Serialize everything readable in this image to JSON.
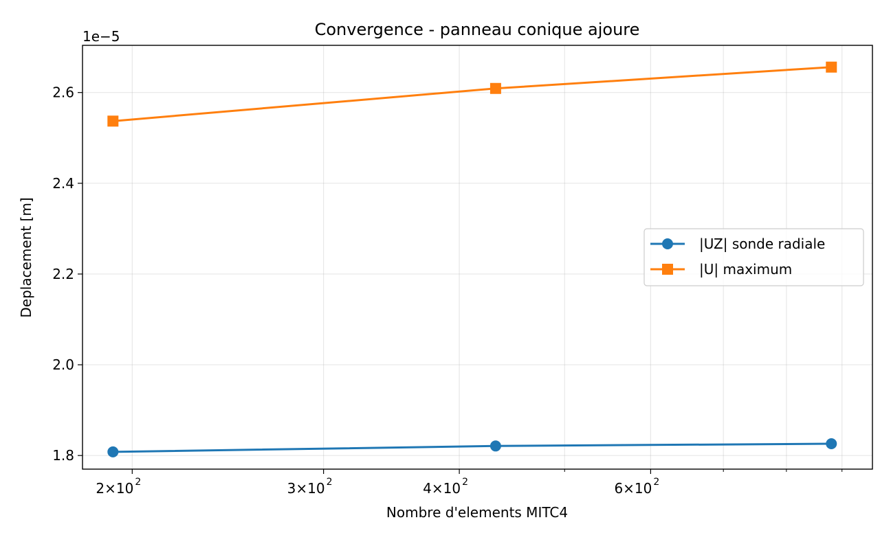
{
  "chart_data": {
    "type": "line",
    "title": "Convergence - panneau conique ajoure",
    "xlabel": "Nombre d'elements MITC4",
    "ylabel": "Deplacement [m]",
    "x_scale": "log",
    "xlim": [
      180,
      960
    ],
    "ylim": [
      1.77,
      2.704
    ],
    "y_offset_label": "1e−5",
    "grid": true,
    "legend_position": "center-right",
    "x_major_ticks": [
      {
        "value": 200,
        "base": "2",
        "exp": "2"
      },
      {
        "value": 300,
        "base": "3",
        "exp": "2"
      },
      {
        "value": 400,
        "base": "4",
        "exp": "2"
      },
      {
        "value": 600,
        "base": "6",
        "exp": "2"
      }
    ],
    "x_minor_ticks": [
      500,
      700,
      800,
      900
    ],
    "y_ticks": [
      {
        "value": 1.8,
        "label": "1.8"
      },
      {
        "value": 2.0,
        "label": "2.0"
      },
      {
        "value": 2.2,
        "label": "2.2"
      },
      {
        "value": 2.4,
        "label": "2.4"
      },
      {
        "value": 2.6,
        "label": "2.6"
      }
    ],
    "x": [
      192,
      432,
      880
    ],
    "series": [
      {
        "name": "|UZ| sonde radiale",
        "color": "#1f77b4",
        "marker": "circle",
        "values": [
          1.808,
          1.821,
          1.826
        ]
      },
      {
        "name": "|U| maximum",
        "color": "#ff7f0e",
        "marker": "square",
        "values": [
          2.537,
          2.609,
          2.656
        ]
      }
    ]
  }
}
